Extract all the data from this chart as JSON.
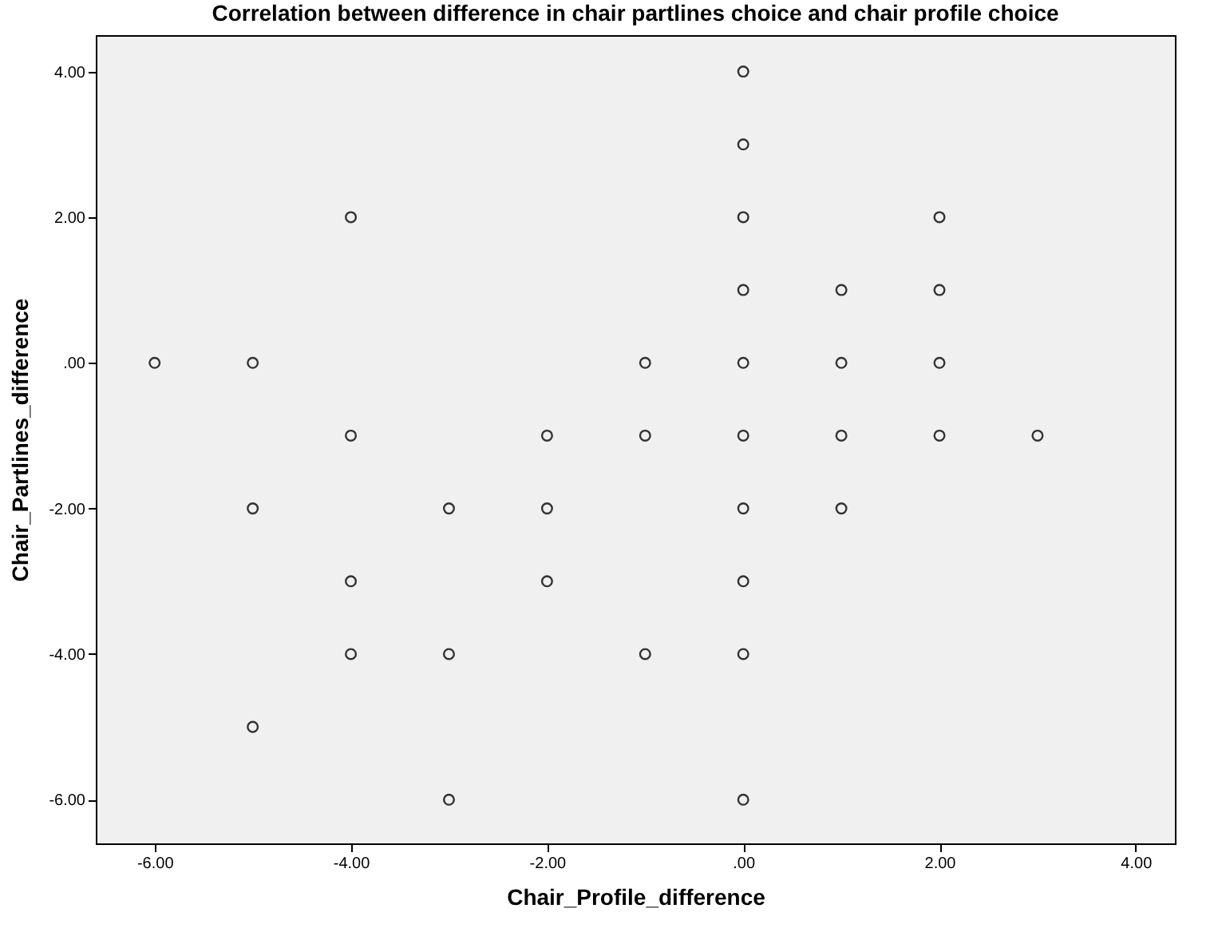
{
  "chart_data": {
    "type": "scatter",
    "title": "Correlation between difference in chair partlines choice and chair profile choice",
    "xlabel": "Chair_Profile_difference",
    "ylabel": "Chair_Partlines_difference",
    "series": [
      {
        "color": "#333333",
        "x": [
          -6,
          -5,
          -5,
          -5,
          -4,
          -4,
          -4,
          -4,
          -3,
          -3,
          -3,
          -2,
          -2,
          -2,
          -1,
          -1,
          -1,
          0,
          0,
          0,
          0,
          0,
          0,
          0,
          0,
          0,
          0,
          1,
          1,
          1,
          1,
          2,
          2,
          2,
          2,
          3
        ],
        "values": [
          0,
          0,
          -2,
          -5,
          2,
          -1,
          -3,
          -4,
          -2,
          -4,
          -6,
          -1,
          -2,
          -3,
          0,
          -1,
          -4,
          4,
          3,
          2,
          1,
          0,
          -1,
          -2,
          -3,
          -4,
          -6,
          1,
          0,
          -1,
          -2,
          2,
          1,
          0,
          -1,
          -1
        ]
      }
    ],
    "xlim": [
      -6.6,
      4.4
    ],
    "ylim": [
      -6.6,
      4.5
    ],
    "xticks": [
      {
        "value": -6,
        "label": "-6.00"
      },
      {
        "value": -4,
        "label": "-4.00"
      },
      {
        "value": -2,
        "label": "-2.00"
      },
      {
        "value": 0,
        "label": ".00"
      },
      {
        "value": 2,
        "label": "2.00"
      },
      {
        "value": 4,
        "label": "4.00"
      }
    ],
    "yticks": [
      {
        "value": -6,
        "label": "-6.00"
      },
      {
        "value": -4,
        "label": "-4.00"
      },
      {
        "value": -2,
        "label": "-2.00"
      },
      {
        "value": 0,
        "label": ".00"
      },
      {
        "value": 2,
        "label": "2.00"
      },
      {
        "value": 4,
        "label": "4.00"
      }
    ],
    "grid": false,
    "legend": false,
    "marker": "circle"
  }
}
